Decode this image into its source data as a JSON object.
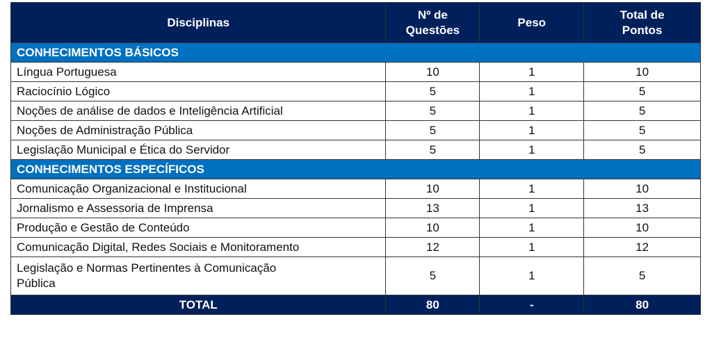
{
  "header": {
    "disciplinas": "Disciplinas",
    "questoes_l1": "Nº de",
    "questoes_l2": "Questões",
    "peso": "Peso",
    "total_l1": "Total de",
    "total_l2": "Pontos"
  },
  "sections": [
    {
      "title": "CONHECIMENTOS BÁSICOS",
      "rows": [
        {
          "name": "Língua Portuguesa",
          "q": "10",
          "p": "1",
          "t": "10"
        },
        {
          "name": "Raciocínio Lógico",
          "q": "5",
          "p": "1",
          "t": "5"
        },
        {
          "name": "Noções de análise de dados e Inteligência Artificial",
          "q": "5",
          "p": "1",
          "t": "5"
        },
        {
          "name": "Noções de Administração Pública",
          "q": "5",
          "p": "1",
          "t": "5"
        },
        {
          "name": "Legislação Municipal e Ética do Servidor",
          "q": "5",
          "p": "1",
          "t": "5"
        }
      ]
    },
    {
      "title": "CONHECIMENTOS ESPECÍFICOS",
      "rows": [
        {
          "name": "Comunicação Organizacional e Institucional",
          "q": "10",
          "p": "1",
          "t": "10"
        },
        {
          "name": "Jornalismo e Assessoria de Imprensa",
          "q": "13",
          "p": "1",
          "t": "13"
        },
        {
          "name": "Produção e Gestão de Conteúdo",
          "q": "10",
          "p": "1",
          "t": "10"
        },
        {
          "name": "Comunicação Digital, Redes Sociais e Monitoramento",
          "q": "12",
          "p": "1",
          "t": "12"
        },
        {
          "name": "Legislação e Normas Pertinentes à Comunicação Pública",
          "q": "5",
          "p": "1",
          "t": "5"
        }
      ]
    }
  ],
  "total": {
    "label": "TOTAL",
    "q": "80",
    "p": "-",
    "t": "80"
  }
}
